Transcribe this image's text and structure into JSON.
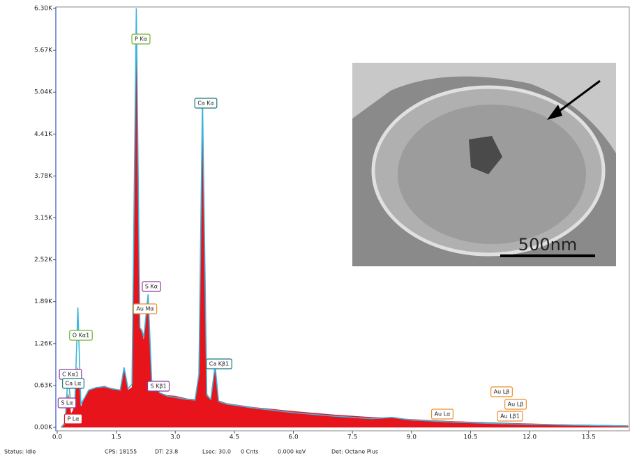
{
  "chart_data": {
    "type": "area",
    "x": [
      0.1,
      0.2,
      0.277,
      0.35,
      0.4,
      0.45,
      0.525,
      0.6,
      0.7,
      0.8,
      1.0,
      1.2,
      1.4,
      1.6,
      1.7,
      1.8,
      1.9,
      2.01,
      2.1,
      2.16,
      2.2,
      2.31,
      2.4,
      2.6,
      2.8,
      3.0,
      3.3,
      3.5,
      3.6,
      3.69,
      3.8,
      3.9,
      4.01,
      4.1,
      4.3,
      5.0,
      6.0,
      7.0,
      8.0,
      8.5,
      9.0,
      9.7,
      10.0,
      11.0,
      12.0,
      13.0,
      14.0,
      14.5
    ],
    "series": [
      {
        "color": "#e8141c",
        "values": [
          0,
          80,
          500,
          200,
          250,
          350,
          900,
          300,
          450,
          550,
          600,
          620,
          580,
          560,
          850,
          560,
          600,
          6300,
          1500,
          1400,
          1300,
          1900,
          700,
          520,
          480,
          470,
          430,
          420,
          800,
          4800,
          500,
          420,
          850,
          400,
          360,
          300,
          240,
          190,
          150,
          140,
          120,
          100,
          90,
          70,
          55,
          40,
          30,
          25
        ]
      },
      {
        "color": "#3cb4dc",
        "values": [
          0,
          60,
          800,
          300,
          350,
          400,
          1800,
          350,
          450,
          560,
          600,
          610,
          580,
          560,
          900,
          580,
          650,
          6300,
          1500,
          1450,
          1350,
          2000,
          700,
          520,
          470,
          450,
          420,
          410,
          800,
          4950,
          480,
          420,
          930,
          390,
          350,
          290,
          220,
          170,
          130,
          150,
          110,
          90,
          80,
          60,
          45,
          35,
          25,
          20
        ]
      }
    ],
    "xlim": [
      0,
      14.55
    ],
    "ylim": [
      0,
      6300
    ],
    "xticks": [
      {
        "value": 0,
        "label": "0.0"
      },
      1.5,
      {
        "value": 3,
        "label": "3.0"
      },
      4.5,
      {
        "value": 6,
        "label": "6.0"
      },
      7.5,
      {
        "value": 9,
        "label": "9.0"
      },
      10.5,
      {
        "value": 12,
        "label": "12.0"
      },
      13.5
    ],
    "yticks": [
      {
        "value": 0,
        "label": "0.00K"
      },
      {
        "value": 630,
        "label": "0.63K"
      },
      {
        "value": 1260,
        "label": "1.26K"
      },
      {
        "value": 1890,
        "label": "1.89K"
      },
      {
        "value": 2520,
        "label": "2.52K"
      },
      {
        "value": 3150,
        "label": "3.15K"
      },
      {
        "value": 3780,
        "label": "3.78K"
      },
      {
        "value": 4410,
        "label": "4.41K"
      },
      {
        "value": 5040,
        "label": "5.04K"
      },
      {
        "value": 5670,
        "label": "5.67K"
      },
      {
        "value": 6300,
        "label": "6.30K"
      }
    ],
    "peak_labels": [
      {
        "text": "P  Kα",
        "color": "#6ab42c"
      },
      {
        "text": "Ca Kα",
        "color": "#18787c"
      },
      {
        "text": "S  Kα",
        "color": "#8c3c9c"
      },
      {
        "text": "Au Mα",
        "color": "#f08c28"
      },
      {
        "text": "O  Kα1",
        "color": "#6ab42c"
      },
      {
        "text": "Ca Kβ1",
        "color": "#18787c"
      },
      {
        "text": "C  Kα1",
        "color": "#8c3c9c"
      },
      {
        "text": "Ca Lα",
        "color": "#18787c"
      },
      {
        "text": "S  Kβ1",
        "color": "#8c3c9c"
      },
      {
        "text": "S  Lα",
        "color": "#8c3c9c"
      },
      {
        "text": "P  Lα",
        "color": "#e8141c"
      },
      {
        "text": "Au Lα",
        "color": "#f08c28"
      },
      {
        "text": "Au Lβ",
        "color": "#f08c28"
      },
      {
        "text": "Au Lβ",
        "color": "#f08c28"
      },
      {
        "text": "Au Lβ1",
        "color": "#f08c28"
      }
    ],
    "inset_scale": "500nm"
  },
  "status": {
    "state": "Status: Idle",
    "cps": "CPS: 18155",
    "dt": "DT: 23.8",
    "lsec": "Lsec: 30.0",
    "counts": "0 Cnts",
    "energy": "0.000 keV",
    "detector": "Det: Octane Plus"
  }
}
